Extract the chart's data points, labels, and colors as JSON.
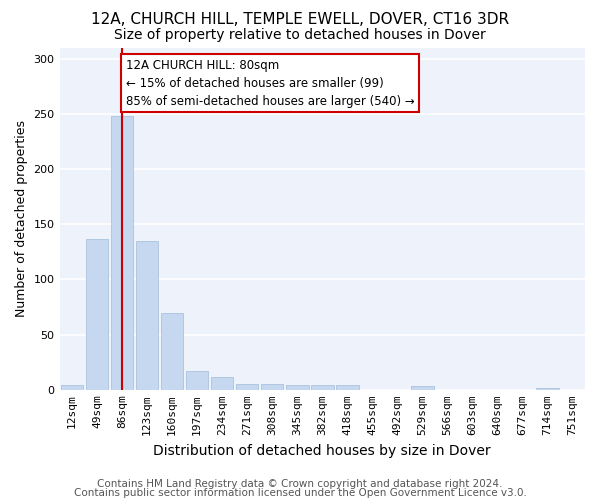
{
  "title1": "12A, CHURCH HILL, TEMPLE EWELL, DOVER, CT16 3DR",
  "title2": "Size of property relative to detached houses in Dover",
  "xlabel": "Distribution of detached houses by size in Dover",
  "ylabel": "Number of detached properties",
  "categories": [
    "12sqm",
    "49sqm",
    "86sqm",
    "123sqm",
    "160sqm",
    "197sqm",
    "234sqm",
    "271sqm",
    "308sqm",
    "345sqm",
    "382sqm",
    "418sqm",
    "455sqm",
    "492sqm",
    "529sqm",
    "566sqm",
    "603sqm",
    "640sqm",
    "677sqm",
    "714sqm",
    "751sqm"
  ],
  "values": [
    4,
    137,
    248,
    135,
    70,
    17,
    12,
    5,
    5,
    4,
    4,
    4,
    0,
    0,
    3,
    0,
    0,
    0,
    0,
    2,
    0
  ],
  "bar_color": "#c5d8f0",
  "bar_edge_color": "#a0bcd8",
  "red_line_index": 2,
  "red_line_color": "#cc0000",
  "annotation_text": "12A CHURCH HILL: 80sqm\n← 15% of detached houses are smaller (99)\n85% of semi-detached houses are larger (540) →",
  "annotation_box_color": "#ffffff",
  "annotation_box_edge_color": "#cc0000",
  "ylim": [
    0,
    310
  ],
  "yticks": [
    0,
    50,
    100,
    150,
    200,
    250,
    300
  ],
  "footer1": "Contains HM Land Registry data © Crown copyright and database right 2024.",
  "footer2": "Contains public sector information licensed under the Open Government Licence v3.0.",
  "bg_color": "#eef2fa",
  "grid_color": "#ffffff",
  "title1_fontsize": 11,
  "title2_fontsize": 10,
  "xlabel_fontsize": 10,
  "ylabel_fontsize": 9,
  "footer_fontsize": 7.5,
  "annotation_fontsize": 8.5,
  "tick_fontsize": 8
}
